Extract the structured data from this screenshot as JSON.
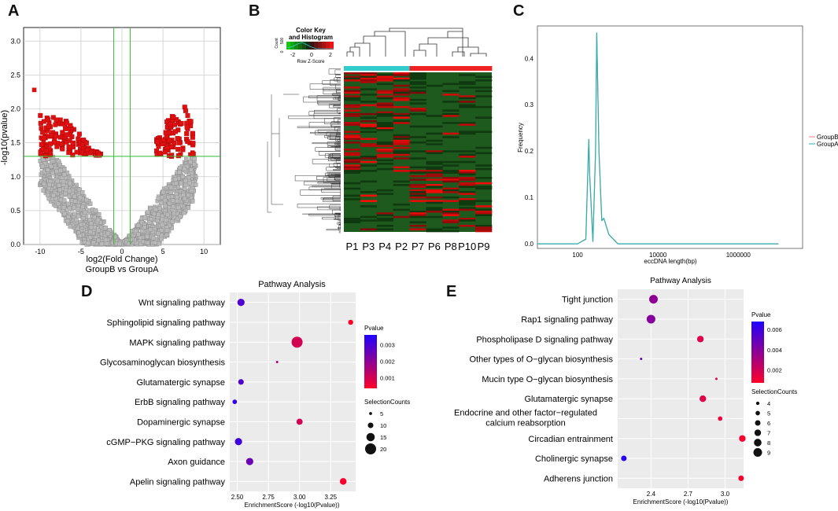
{
  "panel_letters": {
    "a": "A",
    "b": "B",
    "c": "C",
    "d": "D",
    "e": "E"
  },
  "colors": {
    "volcano_sig": "#dd1111",
    "volcano_ns": "#b8b8b8",
    "green_line": "#33bb33",
    "cyan": "#33cccc",
    "heat_red": "#ee2222",
    "heat_green": "#1e5a1e",
    "groupB": "#f08080",
    "groupA": "#2ab0b0",
    "panel_bg": "#ebebeb"
  },
  "chart_data": [
    {
      "id": "A",
      "type": "scatter",
      "xlabel": "log2(Fold Change)",
      "subtitle": "GroupB  vs  GroupA",
      "ylabel": "-log10(pvalue)",
      "xlim": [
        -12,
        12
      ],
      "ylim": [
        0,
        3.2
      ],
      "xticks": [
        "-10",
        "-5",
        "0",
        "5",
        "10"
      ],
      "xtick_vals": [
        -10,
        -5,
        0,
        5,
        10
      ],
      "yticks": [
        "0.0",
        "0.5",
        "1.0",
        "1.5",
        "2.0",
        "2.5",
        "3.0"
      ],
      "ytick_vals": [
        0,
        0.5,
        1,
        1.5,
        2,
        2.5,
        3
      ],
      "threshold_p": 1.3,
      "threshold_fc": [
        -1,
        1
      ]
    },
    {
      "id": "B",
      "type": "heatmap",
      "key_title": "Color Key",
      "key_subtitle": "and Histogram",
      "key_xlabel": "Row Z-Score",
      "key_ylabel": "Count",
      "key_ticks": [
        "-2",
        "0",
        "2"
      ],
      "key_count_ticks": [
        "0",
        "500"
      ],
      "columns": [
        "P1",
        "P3",
        "P4",
        "P2",
        "P7",
        "P6",
        "P8",
        "P10",
        "P9"
      ],
      "column_groups": [
        "cyan",
        "cyan",
        "cyan",
        "cyan",
        "red",
        "red",
        "red",
        "red",
        "red"
      ]
    },
    {
      "id": "C",
      "type": "line",
      "xlabel": "eccDNA length(bp)",
      "ylabel": "Frequency",
      "xticks": [
        "100",
        "10000",
        "1000000"
      ],
      "xtick_vals": [
        100,
        10000,
        1000000
      ],
      "yticks": [
        "0.0",
        "0.1",
        "0.2",
        "0.3",
        "0.4"
      ],
      "ytick_vals": [
        0,
        0.1,
        0.2,
        0.3,
        0.4
      ],
      "xlim_log10": [
        1,
        7.6
      ],
      "ylim": [
        -0.01,
        0.47
      ],
      "series": [
        {
          "name": "GroupB",
          "x": [
            10,
            100,
            160,
            190,
            200,
            240,
            280,
            300,
            340,
            400,
            450,
            600,
            1000,
            5000,
            100000,
            10000000
          ],
          "y": [
            0,
            0,
            0.01,
            0.225,
            0.15,
            0.005,
            0.2,
            0.455,
            0.2,
            0.05,
            0.055,
            0.02,
            0,
            0,
            0,
            0
          ]
        },
        {
          "name": "GroupA",
          "x": [
            10,
            100,
            160,
            190,
            200,
            240,
            280,
            300,
            340,
            400,
            450,
            600,
            1000,
            5000,
            100000,
            10000000
          ],
          "y": [
            0,
            0,
            0.01,
            0.225,
            0.15,
            0.005,
            0.2,
            0.455,
            0.2,
            0.05,
            0.055,
            0.02,
            0,
            0,
            0,
            0
          ]
        }
      ]
    },
    {
      "id": "D",
      "type": "scatter",
      "title": "Pathway Analysis",
      "xlabel": "EnrichmentScore (-log10(Pvalue))",
      "xlim": [
        2.44,
        3.45
      ],
      "xticks": [
        "2.50",
        "2.75",
        "3.00",
        "3.25"
      ],
      "xtick_vals": [
        2.5,
        2.75,
        3.0,
        3.25
      ],
      "legend_color_title": "Pvalue",
      "color_ticks": [
        "0.003",
        "0.002",
        "0.001"
      ],
      "color_tick_vals": [
        0.003,
        0.002,
        0.001
      ],
      "pvalue_range": [
        0.00037,
        0.0036
      ],
      "legend_size_title": "SelectionCounts",
      "size_ticks": [
        "5",
        "10",
        "15",
        "20"
      ],
      "size_tick_vals": [
        5,
        10,
        15,
        20
      ],
      "pathways": [
        "Wnt signaling pathway",
        "Sphingolipid signaling pathway",
        "MAPK signaling pathway",
        "Glycosaminoglycan biosynthesis",
        "Glutamatergic synapse",
        "ErbB signaling pathway",
        "Dopaminergic synapse",
        "cGMP−PKG signaling pathway",
        "Axon guidance",
        "Apelin signaling pathway"
      ],
      "enrichment": [
        2.53,
        3.41,
        2.98,
        2.82,
        2.53,
        2.48,
        3.0,
        2.51,
        2.6,
        3.35
      ],
      "pvalue": [
        0.0029,
        0.00039,
        0.001,
        0.0015,
        0.0029,
        0.0033,
        0.001,
        0.0031,
        0.0025,
        0.00045
      ],
      "counts": [
        13,
        9,
        20,
        4,
        10,
        8,
        11,
        13,
        13,
        12
      ]
    },
    {
      "id": "E",
      "type": "scatter",
      "title": "Pathway Analysis",
      "xlabel": "EnrichmentScore (-log10(Pvalue))",
      "xlim": [
        2.13,
        3.15
      ],
      "xticks": [
        "2.4",
        "2.7",
        "3.0"
      ],
      "xtick_vals": [
        2.4,
        2.7,
        3.0
      ],
      "legend_color_title": "Pvalue",
      "color_ticks": [
        "0.006",
        "0.004",
        "0.002"
      ],
      "color_tick_vals": [
        0.006,
        0.004,
        0.002
      ],
      "pvalue_range": [
        0.0007,
        0.0068
      ],
      "legend_size_title": "SelectionCounts",
      "size_ticks": [
        "4",
        "5",
        "6",
        "7",
        "8",
        "9"
      ],
      "size_tick_vals": [
        4,
        5,
        6,
        7,
        8,
        9
      ],
      "pathways": [
        "Tight junction",
        "Rap1 signaling pathway",
        "Phospholipase D signaling pathway",
        "Other types of O−glycan biosynthesis",
        "Mucin type O−glycan biosynthesis",
        "Glutamatergic synapse",
        "Endocrine and other factor−regulated|calcium reabsorption",
        "Circadian entrainment",
        "Cholinergic synapse",
        "Adherens junction"
      ],
      "enrichment": [
        2.42,
        2.4,
        2.8,
        2.32,
        2.93,
        2.82,
        2.96,
        3.14,
        2.18,
        3.13
      ],
      "pvalue": [
        0.0037,
        0.004,
        0.0016,
        0.005,
        0.0012,
        0.0015,
        0.0011,
        0.0008,
        0.0066,
        0.0008
      ],
      "counts": [
        9,
        9,
        7,
        3,
        3,
        7,
        5,
        7,
        6,
        6
      ]
    }
  ]
}
